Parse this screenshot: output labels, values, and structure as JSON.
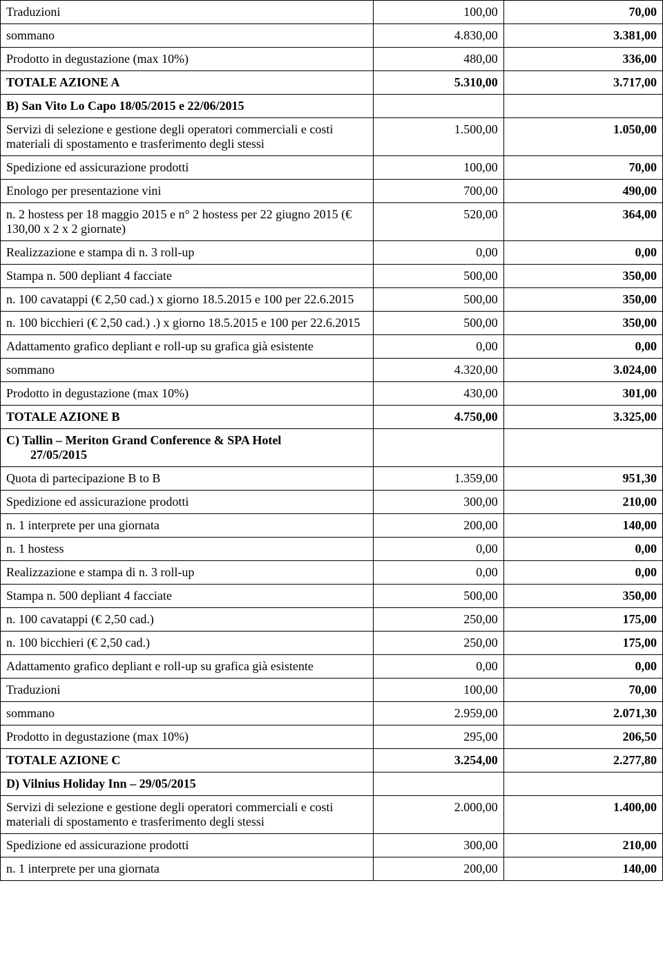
{
  "rows": [
    {
      "desc": "Traduzioni",
      "v1": "100,00",
      "v2": "70,00"
    },
    {
      "desc": "sommano",
      "descAlign": "right",
      "v1": "4.830,00",
      "v2": "3.381,00"
    },
    {
      "desc": "Prodotto in degustazione (max 10%)",
      "v1": "480,00",
      "v2": "336,00"
    },
    {
      "desc": "TOTALE AZIONE A",
      "bold": true,
      "v1": "5.310,00",
      "v1bold": true,
      "v2": "3.717,00"
    },
    {
      "desc": "B) San Vito Lo Capo 18/05/2015 e 22/06/2015",
      "bold": true,
      "v1": "",
      "v2": ""
    },
    {
      "desc": "Servizi di selezione e gestione degli operatori commerciali e costi materiali di spostamento e trasferimento degli stessi",
      "v1": "1.500,00",
      "v2": "1.050,00"
    },
    {
      "desc": "Spedizione ed assicurazione prodotti",
      "v1": "100,00",
      "v2": "70,00"
    },
    {
      "desc": "Enologo per presentazione vini",
      "v1": "700,00",
      "v2": "490,00"
    },
    {
      "desc": "n. 2 hostess per 18 maggio 2015 e n° 2 hostess per 22 giugno 2015 (€ 130,00 x 2 x 2 giornate)",
      "v1": "520,00",
      "v2": "364,00"
    },
    {
      "desc": "Realizzazione e stampa di n. 3 roll-up",
      "v1": "0,00",
      "v2": "0,00"
    },
    {
      "desc": "Stampa n. 500 depliant 4 facciate",
      "v1": "500,00",
      "v2": "350,00"
    },
    {
      "desc": "n. 100 cavatappi (€ 2,50 cad.) x giorno 18.5.2015 e 100 per 22.6.2015",
      "v1": "500,00",
      "v2": "350,00"
    },
    {
      "desc": "n. 100 bicchieri (€ 2,50 cad.) .) x giorno 18.5.2015 e 100 per 22.6.2015",
      "v1": "500,00",
      "v2": "350,00"
    },
    {
      "desc": "Adattamento grafico depliant e roll-up su grafica già esistente",
      "v1": "0,00",
      "v2": "0,00"
    },
    {
      "desc": "sommano",
      "descAlign": "right",
      "v1": "4.320,00",
      "v2": "3.024,00"
    },
    {
      "desc": "Prodotto in degustazione (max 10%)",
      "v1": "430,00",
      "v2": "301,00"
    },
    {
      "desc": "TOTALE AZIONE B",
      "bold": true,
      "v1": "4.750,00",
      "v1bold": true,
      "v2": "3.325,00"
    },
    {
      "desc": "C) Tallin – Meriton Grand Conference & SPA Hotel",
      "desc2": "27/05/2015",
      "bold": true,
      "v1": "",
      "v2": ""
    },
    {
      "desc": "Quota di partecipazione B to B",
      "v1": "1.359,00",
      "v2": "951,30"
    },
    {
      "desc": "Spedizione ed assicurazione prodotti",
      "v1": "300,00",
      "v2": "210,00"
    },
    {
      "desc": "n. 1 interprete per una giornata",
      "v1": "200,00",
      "v2": "140,00"
    },
    {
      "desc": "n. 1 hostess",
      "v1": "0,00",
      "v2": "0,00"
    },
    {
      "desc": "Realizzazione e stampa di n. 3 roll-up",
      "v1": "0,00",
      "v2": "0,00"
    },
    {
      "desc": "Stampa n. 500 depliant 4 facciate",
      "v1": "500,00",
      "v2": "350,00"
    },
    {
      "desc": "n. 100 cavatappi (€ 2,50 cad.)",
      "v1": "250,00",
      "v2": "175,00"
    },
    {
      "desc": "n. 100 bicchieri (€ 2,50 cad.)",
      "v1": "250,00",
      "v2": "175,00"
    },
    {
      "desc": "Adattamento grafico depliant e roll-up su grafica già esistente",
      "v1": "0,00",
      "v2": "0,00"
    },
    {
      "desc": "Traduzioni",
      "v1": "100,00",
      "v2": "70,00"
    },
    {
      "desc": "sommano",
      "descAlign": "right",
      "v1": "2.959,00",
      "v2": "2.071,30"
    },
    {
      "desc": "Prodotto in degustazione (max 10%)",
      "v1": "295,00",
      "v2": "206,50"
    },
    {
      "desc": "TOTALE AZIONE C",
      "bold": true,
      "v1": "3.254,00",
      "v1bold": true,
      "v2": "2.277,80"
    },
    {
      "desc": "D) Vilnius Holiday Inn – 29/05/2015",
      "bold": true,
      "v1": "",
      "v2": ""
    },
    {
      "desc": "Servizi di selezione e gestione degli operatori commerciali e costi materiali di spostamento e trasferimento degli stessi",
      "v1": "2.000,00",
      "v2": "1.400,00"
    },
    {
      "desc": "Spedizione ed assicurazione prodotti",
      "v1": "300,00",
      "v2": "210,00"
    },
    {
      "desc": "n. 1 interprete per una giornata",
      "v1": "200,00",
      "v2": "140,00"
    }
  ]
}
